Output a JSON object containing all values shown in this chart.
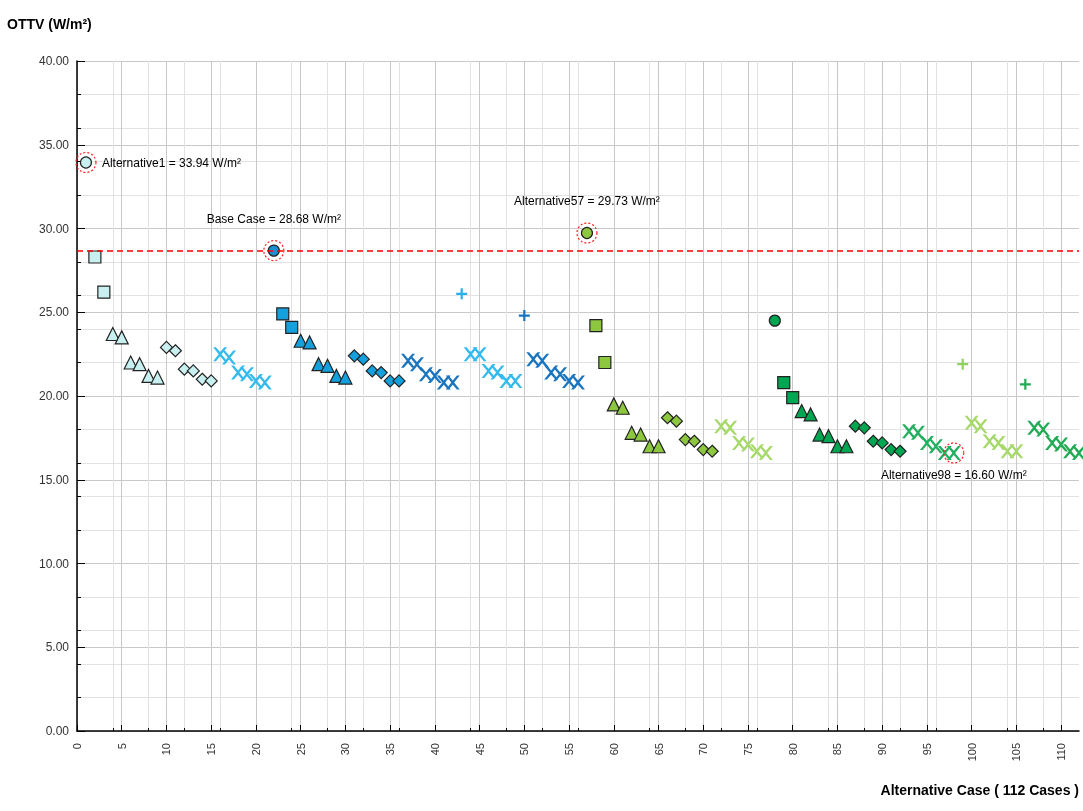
{
  "chart_data": {
    "type": "scatter",
    "ylabel": "OTTV (W/m²)",
    "xlabel": "Alternative Case ( 112 Cases )",
    "xlim": [
      0,
      112
    ],
    "xticks": [
      0,
      5,
      10,
      15,
      20,
      25,
      30,
      35,
      40,
      45,
      50,
      55,
      60,
      65,
      70,
      75,
      80,
      85,
      90,
      95,
      100,
      105,
      110
    ],
    "ylim": [
      0,
      40
    ],
    "yticks": [
      {
        "value": 0,
        "label": "0.00"
      },
      {
        "value": 5,
        "label": "5.00"
      },
      {
        "value": 10,
        "label": "10.00"
      },
      {
        "value": 15,
        "label": "15.00"
      },
      {
        "value": 20,
        "label": "20.00"
      },
      {
        "value": 25,
        "label": "25.00"
      },
      {
        "value": 30,
        "label": "30.00"
      },
      {
        "value": 35,
        "label": "35.00"
      },
      {
        "value": 40,
        "label": "40.00"
      }
    ],
    "grid": true,
    "series": [
      {
        "marker": "circle",
        "color": "#c8f0f0",
        "x": [
          1
        ],
        "values": [
          33.94
        ]
      },
      {
        "marker": "square",
        "color": "#c8f0f0",
        "x": [
          2,
          3
        ],
        "values": [
          28.3,
          26.2
        ]
      },
      {
        "marker": "triangle",
        "color": "#c8f0f0",
        "x": [
          4,
          5,
          6,
          7,
          8,
          9
        ],
        "values": [
          23.7,
          23.5,
          22.0,
          21.9,
          21.2,
          21.1
        ]
      },
      {
        "marker": "diamond",
        "color": "#c8f0f0",
        "x": [
          10,
          11,
          12,
          13,
          14,
          15
        ],
        "values": [
          22.9,
          22.7,
          21.6,
          21.5,
          21.0,
          20.9
        ]
      },
      {
        "marker": "x",
        "color": "#33bbee",
        "x": [
          16,
          17,
          18,
          19,
          20,
          21
        ],
        "values": [
          22.5,
          22.3,
          21.4,
          21.3,
          20.9,
          20.8
        ]
      },
      {
        "marker": "circle",
        "color": "#1a8fd1",
        "x": [
          22
        ],
        "values": [
          28.68
        ]
      },
      {
        "marker": "square",
        "color": "#13a0dc",
        "x": [
          23,
          24
        ],
        "values": [
          24.9,
          24.1
        ]
      },
      {
        "marker": "triangle",
        "color": "#13a0dc",
        "x": [
          25,
          26,
          27,
          28,
          29,
          30
        ],
        "values": [
          23.3,
          23.2,
          21.9,
          21.8,
          21.2,
          21.1
        ]
      },
      {
        "marker": "diamond",
        "color": "#13a0dc",
        "x": [
          31,
          32,
          33,
          34,
          35,
          36
        ],
        "values": [
          22.4,
          22.2,
          21.5,
          21.4,
          20.9,
          20.9
        ]
      },
      {
        "marker": "x",
        "color": "#1a75c0",
        "x": [
          37,
          38,
          39,
          40,
          41,
          42
        ],
        "values": [
          22.1,
          21.9,
          21.3,
          21.2,
          20.8,
          20.8
        ]
      },
      {
        "marker": "cross",
        "color": "#2ab0e8",
        "x": [
          43
        ],
        "values": [
          26.1
        ]
      },
      {
        "marker": "x",
        "color": "#33bbee",
        "x": [
          44,
          45,
          46,
          47,
          48,
          49
        ],
        "values": [
          22.5,
          22.5,
          21.5,
          21.4,
          20.9,
          20.9
        ]
      },
      {
        "marker": "cross",
        "color": "#1a75c0",
        "x": [
          50
        ],
        "values": [
          24.8
        ]
      },
      {
        "marker": "x",
        "color": "#1a75c0",
        "x": [
          51,
          52,
          53,
          54,
          55,
          56
        ],
        "values": [
          22.2,
          22.1,
          21.4,
          21.3,
          20.9,
          20.8
        ]
      },
      {
        "marker": "circle",
        "color": "#8dc63f",
        "x": [
          57
        ],
        "values": [
          29.73
        ]
      },
      {
        "marker": "square",
        "color": "#8dc63f",
        "x": [
          58,
          59
        ],
        "values": [
          24.2,
          22.0
        ]
      },
      {
        "marker": "triangle",
        "color": "#8dc63f",
        "x": [
          60,
          61,
          62,
          63,
          64,
          65
        ],
        "values": [
          19.5,
          19.3,
          17.8,
          17.7,
          17.0,
          17.0
        ]
      },
      {
        "marker": "diamond",
        "color": "#8dc63f",
        "x": [
          66,
          67,
          68,
          69,
          70,
          71
        ],
        "values": [
          18.7,
          18.5,
          17.4,
          17.3,
          16.8,
          16.7
        ]
      },
      {
        "marker": "x",
        "color": "#a6d96a",
        "x": [
          72,
          73,
          74,
          75,
          76,
          77
        ],
        "values": [
          18.2,
          18.1,
          17.2,
          17.1,
          16.7,
          16.6
        ]
      },
      {
        "marker": "circle",
        "color": "#00a651",
        "x": [
          78
        ],
        "values": [
          24.5
        ]
      },
      {
        "marker": "square",
        "color": "#00a651",
        "x": [
          79,
          80
        ],
        "values": [
          20.8,
          19.9
        ]
      },
      {
        "marker": "triangle",
        "color": "#00a651",
        "x": [
          81,
          82,
          83,
          84,
          85,
          86
        ],
        "values": [
          19.1,
          18.9,
          17.7,
          17.6,
          17.0,
          17.0
        ]
      },
      {
        "marker": "diamond",
        "color": "#00a651",
        "x": [
          87,
          88,
          89,
          90,
          91,
          92
        ],
        "values": [
          18.2,
          18.1,
          17.3,
          17.2,
          16.8,
          16.7
        ]
      },
      {
        "marker": "x",
        "color": "#22b060",
        "x": [
          93,
          94,
          95,
          96,
          97,
          98
        ],
        "values": [
          17.9,
          17.8,
          17.2,
          17.0,
          16.6,
          16.6
        ]
      },
      {
        "marker": "cross",
        "color": "#8dd35f",
        "x": [
          99
        ],
        "values": [
          21.9
        ]
      },
      {
        "marker": "x",
        "color": "#a6d96a",
        "x": [
          100,
          101,
          102,
          103,
          104,
          105
        ],
        "values": [
          18.4,
          18.2,
          17.3,
          17.2,
          16.7,
          16.7
        ]
      },
      {
        "marker": "cross",
        "color": "#22aa55",
        "x": [
          106
        ],
        "values": [
          20.7
        ]
      },
      {
        "marker": "x",
        "color": "#22aa55",
        "x": [
          107,
          108,
          109,
          110,
          111,
          112
        ],
        "values": [
          18.1,
          18.0,
          17.2,
          17.1,
          16.7,
          16.6
        ]
      }
    ],
    "ref_lines": [
      {
        "axis": "y",
        "value": 28.68,
        "color": "#ff0000",
        "line_style": "dashed"
      }
    ],
    "annotations": [
      {
        "text": "Alternative1 = 33.94 W/m²",
        "x": 1,
        "y": 33.94
      },
      {
        "text": "Base Case = 28.68 W/m²",
        "x": 22,
        "y": 28.68
      },
      {
        "text": "Alternative57 = 29.73 W/m²",
        "x": 57,
        "y": 29.73
      },
      {
        "text": "Alternative98 = 16.60 W/m²",
        "x": 98,
        "y": 16.6
      }
    ]
  }
}
